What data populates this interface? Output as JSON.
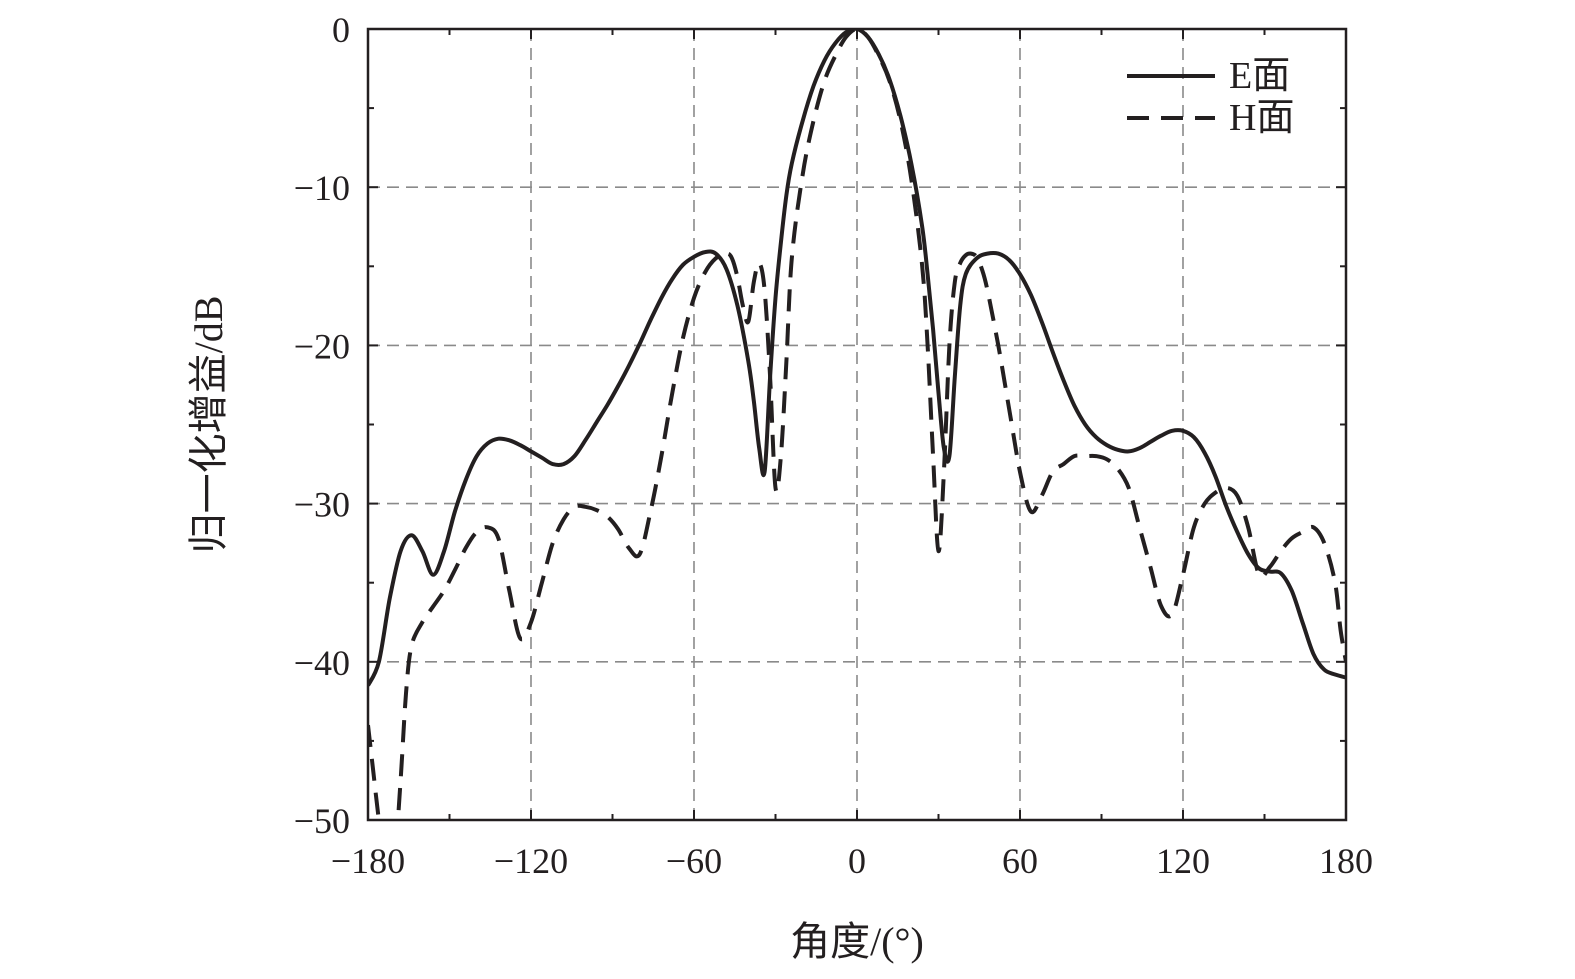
{
  "chart_data": {
    "type": "line",
    "title": "",
    "xlabel": "角度/(°)",
    "ylabel": "归一化增益/dB",
    "xlim": [
      -180,
      180
    ],
    "ylim": [
      -50,
      0
    ],
    "grid": true,
    "legend_position": "top-right",
    "x_ticks": [
      -180,
      -120,
      -60,
      0,
      60,
      120,
      180
    ],
    "x_tick_labels": [
      "−180",
      "−120",
      "−60",
      "0",
      "60",
      "120",
      "180"
    ],
    "y_ticks": [
      0,
      -10,
      -20,
      -30,
      -40,
      -50
    ],
    "y_tick_labels": [
      "0",
      "−10",
      "−20",
      "−30",
      "−40",
      "−50"
    ],
    "series": [
      {
        "name": "E面",
        "style": "solid",
        "color": "#231f20",
        "x": [
          -180,
          -176,
          -172,
          -168,
          -164,
          -160,
          -156,
          -152,
          -148,
          -144,
          -140,
          -136,
          -132,
          -128,
          -124,
          -120,
          -116,
          -112,
          -108,
          -104,
          -100,
          -96,
          -92,
          -88,
          -84,
          -80,
          -76,
          -72,
          -68,
          -64,
          -60,
          -56,
          -52,
          -48,
          -44,
          -40,
          -38,
          -36,
          -34,
          -32,
          -30,
          -28,
          -26,
          -24,
          -20,
          -16,
          -12,
          -8,
          -4,
          0,
          4,
          8,
          12,
          16,
          20,
          24,
          26,
          28,
          30,
          32,
          34,
          36,
          38,
          40,
          44,
          48,
          52,
          56,
          60,
          64,
          68,
          72,
          76,
          80,
          84,
          88,
          92,
          96,
          100,
          104,
          108,
          112,
          116,
          120,
          124,
          128,
          132,
          136,
          140,
          144,
          148,
          152,
          156,
          160,
          164,
          168,
          172,
          176,
          180
        ],
        "y": [
          -41.5,
          -40,
          -36,
          -33,
          -32,
          -33,
          -34.5,
          -33,
          -30.5,
          -28.5,
          -27,
          -26.2,
          -25.9,
          -26,
          -26.3,
          -26.7,
          -27.1,
          -27.5,
          -27.5,
          -27,
          -26,
          -24.9,
          -23.8,
          -22.6,
          -21.3,
          -19.9,
          -18.4,
          -17,
          -15.8,
          -14.9,
          -14.4,
          -14.1,
          -14.2,
          -15.2,
          -17.5,
          -21,
          -23.5,
          -26.5,
          -28,
          -22,
          -17,
          -13.5,
          -10.5,
          -8.5,
          -5.8,
          -3.6,
          -2.0,
          -0.9,
          -0.2,
          0,
          -0.5,
          -1.6,
          -3.2,
          -5.5,
          -8.5,
          -12.5,
          -15.5,
          -19,
          -23,
          -26.5,
          -27,
          -22,
          -17.5,
          -15.5,
          -14.5,
          -14.2,
          -14.2,
          -14.6,
          -15.5,
          -16.8,
          -18.5,
          -20.4,
          -22.2,
          -23.8,
          -25,
          -25.8,
          -26.3,
          -26.6,
          -26.7,
          -26.5,
          -26.1,
          -25.7,
          -25.4,
          -25.4,
          -25.8,
          -26.8,
          -28.3,
          -30.2,
          -31.8,
          -33.2,
          -34.1,
          -34.3,
          -34.4,
          -35.5,
          -37.5,
          -39.5,
          -40.5,
          -40.8,
          -41
        ]
      },
      {
        "name": "H面",
        "style": "dashed",
        "color": "#231f20",
        "x": [
          -180,
          -178,
          -176,
          -174,
          -172,
          -170,
          -168,
          -166,
          -164,
          -160,
          -156,
          -152,
          -148,
          -144,
          -140,
          -136,
          -132,
          -128,
          -124,
          -120,
          -116,
          -112,
          -108,
          -104,
          -100,
          -96,
          -92,
          -88,
          -84,
          -80,
          -76,
          -72,
          -68,
          -64,
          -60,
          -56,
          -52,
          -48,
          -46,
          -44,
          -42,
          -40,
          -38,
          -36,
          -34,
          -32,
          -30,
          -28,
          -26,
          -24,
          -20,
          -16,
          -12,
          -8,
          -4,
          0,
          4,
          8,
          12,
          16,
          20,
          24,
          26,
          28,
          30,
          32,
          34,
          36,
          38,
          40,
          42,
          44,
          46,
          48,
          52,
          56,
          60,
          64,
          68,
          72,
          76,
          80,
          84,
          88,
          92,
          96,
          100,
          104,
          108,
          112,
          116,
          120,
          124,
          128,
          132,
          136,
          140,
          144,
          148,
          152,
          156,
          160,
          164,
          168,
          172,
          176,
          178,
          180
        ],
        "y": [
          -44,
          -47,
          -50,
          -52,
          -53,
          -52,
          -47.5,
          -42,
          -39,
          -37.5,
          -36.5,
          -35.5,
          -34.2,
          -32.8,
          -31.8,
          -31.5,
          -32.2,
          -35.5,
          -38.5,
          -37.5,
          -35,
          -32.5,
          -31,
          -30.2,
          -30.2,
          -30.4,
          -30.8,
          -31.6,
          -32.8,
          -33.2,
          -30.5,
          -27,
          -23,
          -19.5,
          -17,
          -15.4,
          -14.5,
          -14.2,
          -14.5,
          -15.7,
          -17.5,
          -18.5,
          -16,
          -14.8,
          -16.5,
          -22,
          -29,
          -27,
          -21,
          -14.5,
          -9.2,
          -5.8,
          -3.3,
          -1.7,
          -0.5,
          0,
          -0.5,
          -1.7,
          -3.3,
          -5.8,
          -9.5,
          -15,
          -20,
          -27,
          -33,
          -28,
          -20,
          -16,
          -14.8,
          -14.3,
          -14.2,
          -14.4,
          -15.2,
          -16.5,
          -20,
          -24,
          -28,
          -30.5,
          -29.5,
          -28,
          -27.5,
          -27,
          -27,
          -27,
          -27.2,
          -27.8,
          -29,
          -31.5,
          -34,
          -36.5,
          -37,
          -34.5,
          -31.5,
          -30,
          -29.3,
          -29,
          -29.5,
          -31.5,
          -34.5,
          -34,
          -33,
          -32.2,
          -31.8,
          -31.5,
          -32.5,
          -35,
          -38,
          -40
        ]
      }
    ]
  }
}
